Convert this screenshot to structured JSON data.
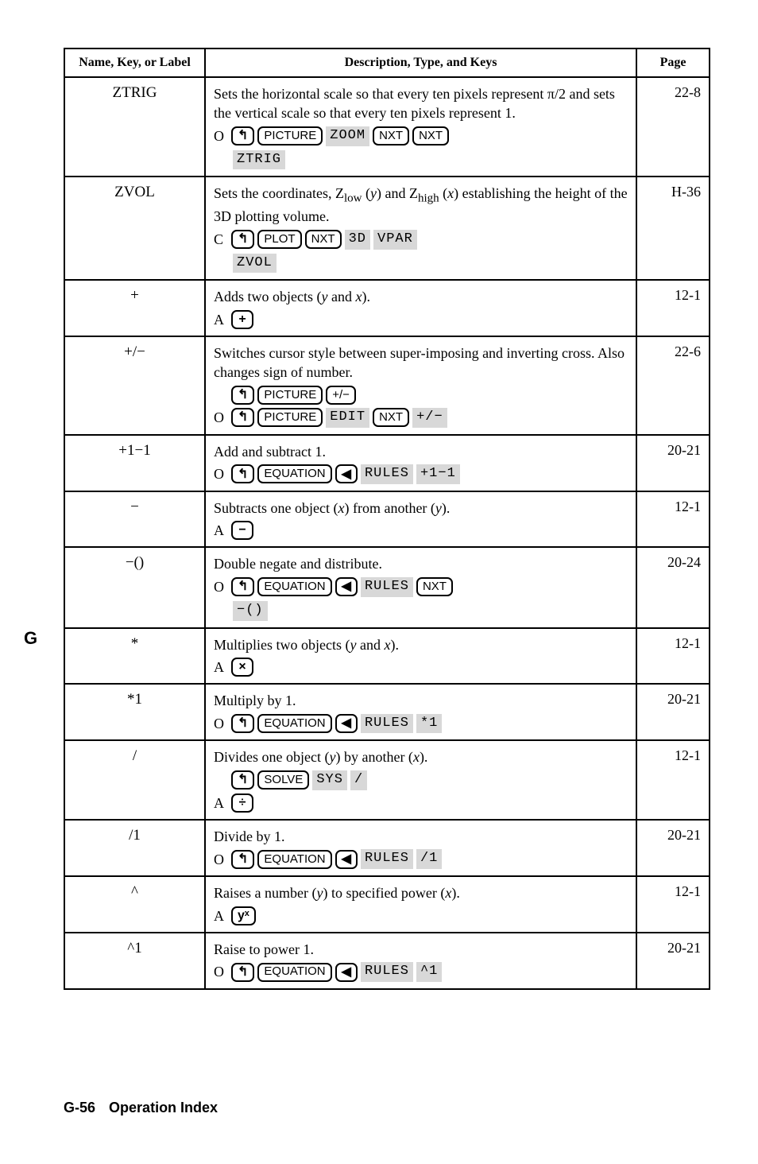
{
  "side_letter": "G",
  "headers": {
    "col_name": "Name, Key, or Label",
    "col_desc": "Description, Type, and Keys",
    "col_page": "Page"
  },
  "rows": [
    {
      "name": "ZTRIG",
      "desc": "Sets the horizontal scale so that every ten pixels represent π/2 and sets the vertical scale so that every ten pixels represent 1.",
      "lead": "O",
      "keys1": [
        "↰",
        "PICTURE"
      ],
      "soft1a": "ZOOM",
      "keys1b": [
        "NXT",
        "NXT"
      ],
      "soft_under": "ZTRIG",
      "page": "22-8"
    },
    {
      "name": "ZVOL",
      "desc_html": "Sets the coordinates, Z<sub>low</sub> (<i>y</i>) and Z<sub>high</sub> (<i>x</i>) establishing the height of the 3D plotting volume.",
      "lead": "C",
      "keys1": [
        "↰",
        "PLOT",
        "NXT"
      ],
      "soft1a": "3D",
      "soft1b": "VPAR",
      "soft_under": "ZVOL",
      "page": "H-36"
    },
    {
      "name": "+",
      "desc_html": "Adds two objects (<i>y</i> and <i>x</i>).",
      "lead": "A",
      "keys1": [
        "+"
      ],
      "page": "12-1"
    },
    {
      "name": "+/−",
      "desc": "Switches cursor style between super-imposing and inverting cross. Also changes sign of number.",
      "keys0": [
        "↰",
        "PICTURE",
        "+/−"
      ],
      "lead": "O",
      "keys1": [
        "↰",
        "PICTURE"
      ],
      "soft1a": "EDIT",
      "keys1b": [
        "NXT"
      ],
      "soft1c": "+/−",
      "page": "22-6"
    },
    {
      "name": "+1−1",
      "desc": "Add and subtract 1.",
      "lead": "O",
      "keys1": [
        "↰",
        "EQUATION",
        "◀"
      ],
      "soft1a": "RULES",
      "soft1c": "+1−1",
      "page": "20-21"
    },
    {
      "name": "−",
      "desc_html": "Subtracts one object (<i>x</i>) from another (<i>y</i>).",
      "lead": "A",
      "keys1": [
        "−"
      ],
      "page": "12-1"
    },
    {
      "name": "−()",
      "desc": "Double negate and distribute.",
      "lead": "O",
      "keys1": [
        "↰",
        "EQUATION",
        "◀"
      ],
      "soft1a": "RULES",
      "keys1b": [
        "NXT"
      ],
      "soft_under": "−()",
      "page": "20-24"
    },
    {
      "name": "*",
      "desc_html": "Multiplies two objects (<i>y</i> and <i>x</i>).",
      "lead": "A",
      "keys1": [
        "×"
      ],
      "page": "12-1"
    },
    {
      "name": "*1",
      "desc": "Multiply by 1.",
      "lead": "O",
      "keys1": [
        "↰",
        "EQUATION",
        "◀"
      ],
      "soft1a": "RULES",
      "soft1c": "*1",
      "page": "20-21"
    },
    {
      "name": "/",
      "desc_html": "Divides one object (<i>y</i>) by another (<i>x</i>).",
      "keys0": [
        "↰",
        "SOLVE"
      ],
      "soft0a": "SYS",
      "soft0c": "/",
      "lead": "A",
      "keys1": [
        "÷"
      ],
      "page": "12-1"
    },
    {
      "name": "/1",
      "desc": "Divide by 1.",
      "lead": "O",
      "keys1": [
        "↰",
        "EQUATION",
        "◀"
      ],
      "soft1a": "RULES",
      "soft1c": "/1",
      "page": "20-21"
    },
    {
      "name": "^",
      "desc_html": "Raises a number (<i>y</i>) to specified power (<i>x</i>).",
      "lead": "A",
      "keys1": [
        "yˣ"
      ],
      "page": "12-1"
    },
    {
      "name": "^1",
      "desc": "Raise to power 1.",
      "lead": "O",
      "keys1": [
        "↰",
        "EQUATION",
        "◀"
      ],
      "soft1a": "RULES",
      "soft1c": "^1",
      "page": "20-21"
    }
  ],
  "footer": {
    "pg": "G-56",
    "title": "Operation Index"
  }
}
